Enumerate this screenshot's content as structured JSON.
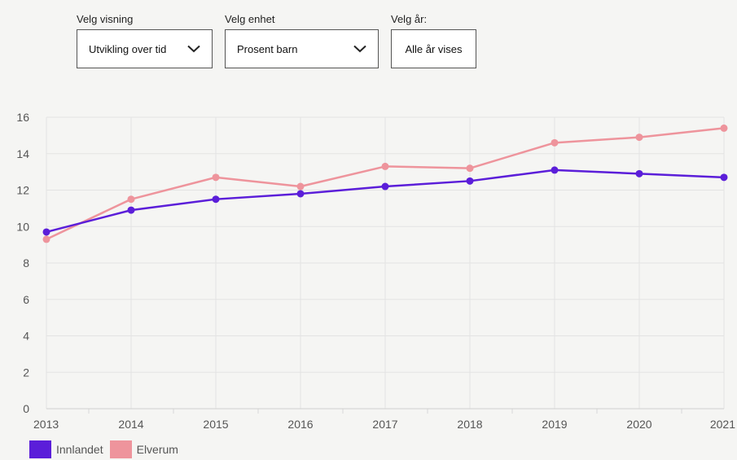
{
  "controls": {
    "visning": {
      "label": "Velg visning",
      "value": "Utvikling over tid",
      "icon": "chevron-down-icon"
    },
    "enhet": {
      "label": "Velg enhet",
      "value": "Prosent barn",
      "icon": "chevron-down-icon"
    },
    "aar": {
      "label": "Velg år:",
      "value": "Alle år vises"
    }
  },
  "chart_data": {
    "type": "line",
    "x": [
      "2013",
      "2014",
      "2015",
      "2016",
      "2017",
      "2018",
      "2019",
      "2020",
      "2021"
    ],
    "ylim": [
      0,
      16
    ],
    "yticks": [
      "0",
      "2",
      "4",
      "6",
      "8",
      "10",
      "12",
      "14",
      "16"
    ],
    "grid": true,
    "legend_position": "bottom-left",
    "series": [
      {
        "name": "Innlandet",
        "color": "#5b1ed9",
        "values": [
          9.7,
          10.9,
          11.5,
          11.8,
          12.2,
          12.5,
          13.1,
          12.9,
          12.7
        ]
      },
      {
        "name": "Elverum",
        "color": "#ee949c",
        "values": [
          9.3,
          11.5,
          12.7,
          12.2,
          13.3,
          13.2,
          14.6,
          14.9,
          15.4
        ]
      }
    ]
  }
}
